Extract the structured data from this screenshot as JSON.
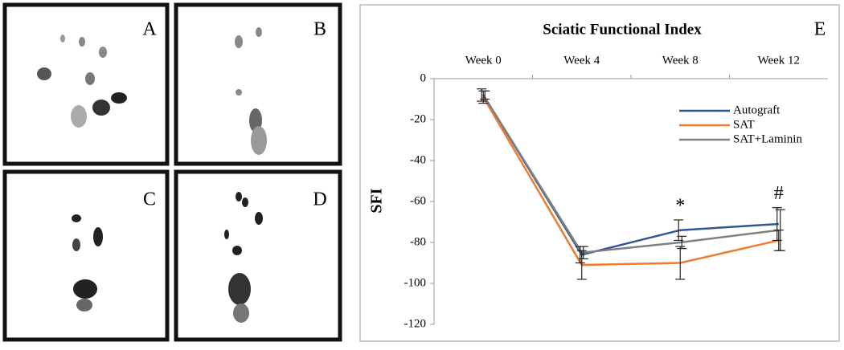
{
  "panel_labels": [
    "A",
    "B",
    "C",
    "D"
  ],
  "chart_data": {
    "type": "line",
    "title": "Sciatic Functional Index",
    "panel_label": "E",
    "y_label": "SFI",
    "categories": [
      "Week 0",
      "Week 4",
      "Week 8",
      "Week 12"
    ],
    "series": [
      {
        "name": "Autograft",
        "color": "#2f5597",
        "values": [
          -8,
          -86,
          -74,
          -71
        ],
        "errors": [
          3,
          4,
          5,
          8
        ]
      },
      {
        "name": "SAT",
        "color": "#ed7d31",
        "values": [
          -9,
          -91,
          -90,
          -79
        ],
        "errors": [
          3,
          7,
          8,
          5
        ]
      },
      {
        "name": "SAT+Laminin",
        "color": "#7f7f7f",
        "values": [
          -8,
          -85,
          -80,
          -74
        ],
        "errors": [
          2,
          3,
          3,
          10
        ]
      }
    ],
    "ylim": [
      -120,
      0
    ],
    "yticks": [
      0,
      -20,
      -40,
      -60,
      -80,
      -100,
      -120
    ],
    "annotations": [
      {
        "text": "*",
        "x": "Week 8"
      },
      {
        "text": "#",
        "x": "Week 12"
      }
    ],
    "legend": "upper right"
  }
}
